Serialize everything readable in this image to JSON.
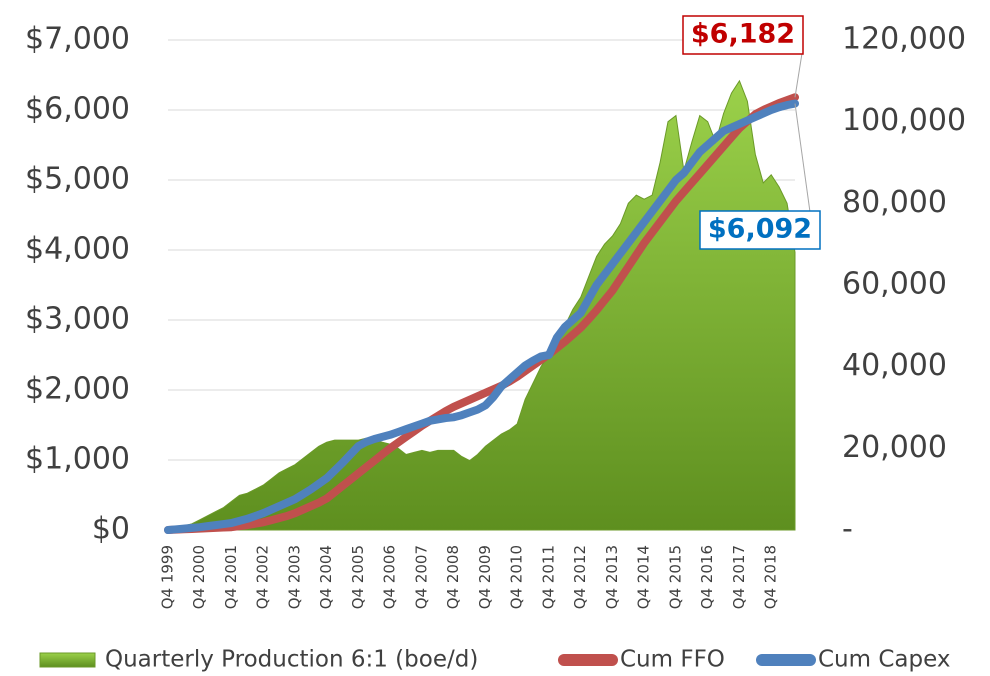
{
  "chart_data": {
    "type": "combo",
    "categories": [
      "Q4 1999",
      null,
      null,
      null,
      "Q4 2000",
      null,
      null,
      null,
      "Q4 2001",
      null,
      null,
      null,
      "Q4 2002",
      null,
      null,
      null,
      "Q4 2003",
      null,
      null,
      null,
      "Q4 2004",
      null,
      null,
      null,
      "Q4 2005",
      null,
      null,
      null,
      "Q4 2006",
      null,
      null,
      null,
      "Q4 2007",
      null,
      null,
      null,
      "Q4 2008",
      null,
      null,
      null,
      "Q4 2009",
      null,
      null,
      null,
      "Q4 2010",
      null,
      null,
      null,
      "Q4 2011",
      null,
      null,
      null,
      "Q4 2012",
      null,
      null,
      null,
      "Q4 2013",
      null,
      null,
      null,
      "Q4 2014",
      null,
      null,
      null,
      "Q4 2015",
      null,
      null,
      null,
      "Q4 2016",
      null,
      null,
      null,
      "Q4 2017",
      null,
      null,
      null,
      "Q4 2018",
      null,
      null,
      null
    ],
    "series": [
      {
        "name": "Quarterly Production 6:1 (boe/d)",
        "type": "area",
        "axis": "y2",
        "color": "#7aad2e",
        "values": [
          500,
          800,
          1000,
          1500,
          2500,
          3500,
          4500,
          5500,
          7000,
          8500,
          9000,
          10000,
          11000,
          12500,
          14000,
          15000,
          16000,
          17500,
          19000,
          20500,
          21500,
          22000,
          22000,
          22000,
          22000,
          22500,
          22000,
          21500,
          21000,
          20000,
          18500,
          19000,
          19500,
          19000,
          19500,
          19500,
          19500,
          18000,
          17000,
          18500,
          20500,
          22000,
          23500,
          24500,
          26000,
          32000,
          36000,
          40000,
          43000,
          46000,
          50000,
          54000,
          57000,
          62000,
          67000,
          70000,
          72000,
          75000,
          80000,
          82000,
          81000,
          82000,
          90000,
          100000,
          101500,
          88000,
          95000,
          101500,
          100000,
          95000,
          102000,
          107000,
          110000,
          105000,
          92000,
          85000,
          87000,
          84000,
          80000,
          68000
        ]
      },
      {
        "name": "Cum FFO",
        "type": "line",
        "color": "#c0504d",
        "values": [
          0,
          5,
          10,
          15,
          20,
          25,
          30,
          35,
          40,
          55,
          70,
          90,
          110,
          140,
          170,
          200,
          240,
          290,
          340,
          390,
          450,
          540,
          630,
          720,
          810,
          900,
          990,
          1080,
          1170,
          1250,
          1330,
          1410,
          1490,
          1560,
          1630,
          1700,
          1760,
          1810,
          1860,
          1910,
          1960,
          2010,
          2060,
          2120,
          2190,
          2270,
          2350,
          2430,
          2510,
          2600,
          2690,
          2790,
          2890,
          3010,
          3140,
          3280,
          3420,
          3590,
          3760,
          3930,
          4100,
          4250,
          4400,
          4550,
          4700,
          4830,
          4960,
          5090,
          5220,
          5350,
          5480,
          5610,
          5740,
          5840,
          5940,
          6000,
          6050,
          6100,
          6140,
          6182
        ],
        "value_labels": [
          null,
          null,
          null,
          null,
          null,
          null,
          null,
          null,
          null,
          null,
          null,
          null,
          null,
          null,
          null,
          null,
          null,
          null,
          null,
          null,
          null,
          null,
          null,
          null,
          null,
          null,
          null,
          null,
          null,
          null,
          null,
          null,
          null,
          null,
          null,
          null,
          null,
          null,
          null,
          null,
          null,
          null,
          null,
          null,
          null,
          null,
          null,
          null,
          null,
          null,
          null,
          null,
          null,
          null,
          null,
          null,
          null,
          null,
          null,
          null,
          null,
          null,
          null,
          null,
          null,
          null,
          null,
          null,
          null,
          null,
          null,
          null,
          null,
          null,
          null,
          null,
          null,
          null,
          null,
          "$6,182"
        ]
      },
      {
        "name": "Cum Capex",
        "type": "line",
        "color": "#4f81bd",
        "values": [
          0,
          10,
          20,
          30,
          40,
          55,
          70,
          85,
          100,
          130,
          160,
          200,
          240,
          290,
          340,
          390,
          440,
          510,
          580,
          660,
          740,
          850,
          960,
          1080,
          1200,
          1260,
          1300,
          1330,
          1360,
          1400,
          1440,
          1480,
          1520,
          1560,
          1580,
          1600,
          1610,
          1640,
          1680,
          1720,
          1780,
          1900,
          2050,
          2150,
          2250,
          2350,
          2420,
          2480,
          2500,
          2750,
          2900,
          3000,
          3100,
          3300,
          3500,
          3650,
          3800,
          3950,
          4100,
          4250,
          4400,
          4550,
          4700,
          4850,
          5000,
          5100,
          5250,
          5400,
          5500,
          5600,
          5700,
          5750,
          5800,
          5850,
          5900,
          5950,
          6000,
          6040,
          6070,
          6092
        ],
        "value_labels": [
          null,
          null,
          null,
          null,
          null,
          null,
          null,
          null,
          null,
          null,
          null,
          null,
          null,
          null,
          null,
          null,
          null,
          null,
          null,
          null,
          null,
          null,
          null,
          null,
          null,
          null,
          null,
          null,
          null,
          null,
          null,
          null,
          null,
          null,
          null,
          null,
          null,
          null,
          null,
          null,
          null,
          null,
          null,
          null,
          null,
          null,
          null,
          null,
          null,
          null,
          null,
          null,
          null,
          null,
          null,
          null,
          null,
          null,
          null,
          null,
          null,
          null,
          null,
          null,
          null,
          null,
          null,
          null,
          null,
          null,
          null,
          null,
          null,
          null,
          null,
          null,
          null,
          null,
          null,
          "$6,092"
        ]
      }
    ],
    "ylim": [
      0,
      7000
    ],
    "yticks": [
      {
        "value": 0,
        "label": "$0"
      },
      {
        "value": 1000,
        "label": "$1,000"
      },
      {
        "value": 2000,
        "label": "$2,000"
      },
      {
        "value": 3000,
        "label": "$3,000"
      },
      {
        "value": 4000,
        "label": "$4,000"
      },
      {
        "value": 5000,
        "label": "$5,000"
      },
      {
        "value": 6000,
        "label": "$6,000"
      },
      {
        "value": 7000,
        "label": "$7,000"
      }
    ],
    "y2lim": [
      0,
      120000
    ],
    "y2ticks": [
      {
        "value": 0,
        "label": "-"
      },
      {
        "value": 20000,
        "label": "20,000"
      },
      {
        "value": 40000,
        "label": "40,000"
      },
      {
        "value": 60000,
        "label": "60,000"
      },
      {
        "value": 80000,
        "label": "80,000"
      },
      {
        "value": 100000,
        "label": "100,000"
      },
      {
        "value": 120000,
        "label": "120,000"
      }
    ],
    "grid": true,
    "legend": "bottom"
  }
}
